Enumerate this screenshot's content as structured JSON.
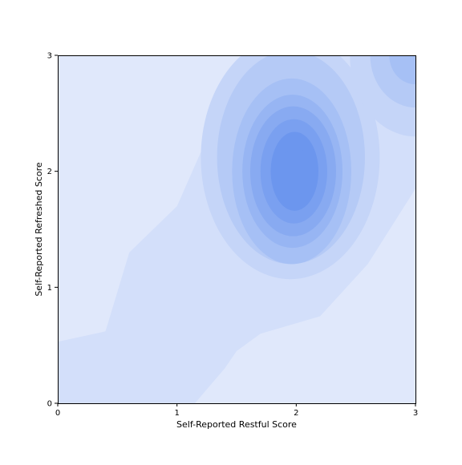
{
  "chart_data": {
    "type": "kde",
    "title": "",
    "xlabel": "Self-Reported Restful Score",
    "ylabel": "Self-Reported Refreshed Score",
    "xlim": [
      0,
      3
    ],
    "ylim": [
      0,
      3
    ],
    "xticks": [
      0,
      1,
      2,
      3
    ],
    "yticks": [
      0,
      1,
      2,
      3
    ],
    "grid": false,
    "legend": "none",
    "colors": {
      "levels": [
        "#e0e8fb",
        "#d3dffa",
        "#c5d5f8",
        "#b5caf6",
        "#a6c0f5",
        "#97b5f3",
        "#88aaf1",
        "#7aa0f0",
        "#6c96ee"
      ]
    },
    "density_peaks": [
      {
        "x": 2.0,
        "y": 2.0,
        "weight": 1.0
      },
      {
        "x": 3.0,
        "y": 3.0,
        "weight": 0.35
      },
      {
        "x": 0.85,
        "y": 1.5,
        "weight": 0.12
      },
      {
        "x": 0.3,
        "y": 0.3,
        "weight": 0.1
      }
    ]
  }
}
